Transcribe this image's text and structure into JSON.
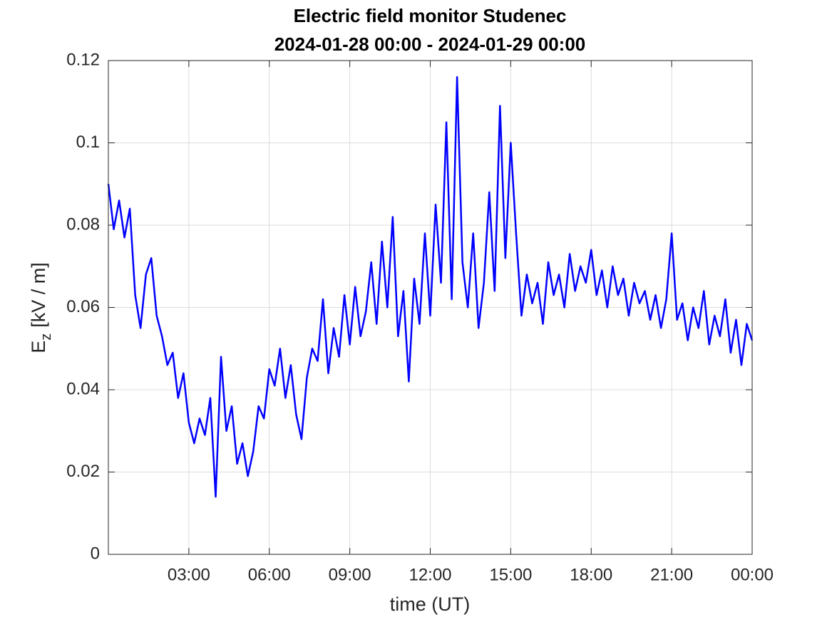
{
  "chart_data": {
    "type": "line",
    "title": "Electric field monitor Studenec",
    "subtitle": "2024-01-28 00:00 - 2024-01-29 00:00",
    "xlabel": "time (UT)",
    "ylabel": {
      "main": "E",
      "sub": "z",
      "rest": "[kV / m]"
    },
    "xlim": [
      0,
      24
    ],
    "xticks": [
      {
        "value": 3,
        "label": "03:00"
      },
      {
        "value": 6,
        "label": "06:00"
      },
      {
        "value": 9,
        "label": "09:00"
      },
      {
        "value": 12,
        "label": "12:00"
      },
      {
        "value": 15,
        "label": "15:00"
      },
      {
        "value": 18,
        "label": "18:00"
      },
      {
        "value": 21,
        "label": "21:00"
      },
      {
        "value": 24,
        "label": "00:00"
      }
    ],
    "ylim": [
      0,
      0.12
    ],
    "yticks": [
      0,
      0.02,
      0.04,
      0.06,
      0.08,
      0.1,
      0.12
    ],
    "grid": true,
    "x": [
      0,
      0.2,
      0.4,
      0.6,
      0.8,
      1,
      1.2,
      1.4,
      1.6,
      1.8,
      2,
      2.2,
      2.4,
      2.6,
      2.8,
      3,
      3.2,
      3.4,
      3.6,
      3.8,
      4,
      4.2,
      4.4,
      4.6,
      4.8,
      5,
      5.2,
      5.4,
      5.6,
      5.8,
      6,
      6.2,
      6.4,
      6.6,
      6.8,
      7,
      7.2,
      7.4,
      7.6,
      7.8,
      8,
      8.2,
      8.4,
      8.6,
      8.8,
      9,
      9.2,
      9.4,
      9.6,
      9.8,
      10,
      10.2,
      10.4,
      10.6,
      10.8,
      11,
      11.2,
      11.4,
      11.6,
      11.8,
      12,
      12.2,
      12.4,
      12.6,
      12.8,
      13,
      13.2,
      13.4,
      13.6,
      13.8,
      14,
      14.2,
      14.4,
      14.6,
      14.8,
      15,
      15.2,
      15.4,
      15.6,
      15.8,
      16,
      16.2,
      16.4,
      16.6,
      16.8,
      17,
      17.2,
      17.4,
      17.6,
      17.8,
      18,
      18.2,
      18.4,
      18.6,
      18.8,
      19,
      19.2,
      19.4,
      19.6,
      19.8,
      20,
      20.2,
      20.4,
      20.6,
      20.8,
      21,
      21.2,
      21.4,
      21.6,
      21.8,
      22,
      22.2,
      22.4,
      22.6,
      22.8,
      23,
      23.2,
      23.4,
      23.6,
      23.8,
      24
    ],
    "series": [
      {
        "color": "#0000ff",
        "values": [
          0.09,
          0.079,
          0.086,
          0.077,
          0.084,
          0.063,
          0.055,
          0.068,
          0.072,
          0.058,
          0.053,
          0.046,
          0.049,
          0.038,
          0.044,
          0.032,
          0.027,
          0.033,
          0.029,
          0.038,
          0.014,
          0.048,
          0.03,
          0.036,
          0.022,
          0.027,
          0.019,
          0.025,
          0.036,
          0.033,
          0.045,
          0.041,
          0.05,
          0.038,
          0.046,
          0.034,
          0.028,
          0.043,
          0.05,
          0.047,
          0.062,
          0.044,
          0.055,
          0.048,
          0.063,
          0.051,
          0.065,
          0.053,
          0.059,
          0.071,
          0.056,
          0.076,
          0.06,
          0.082,
          0.053,
          0.064,
          0.042,
          0.067,
          0.056,
          0.078,
          0.058,
          0.085,
          0.066,
          0.105,
          0.062,
          0.116,
          0.071,
          0.06,
          0.078,
          0.055,
          0.066,
          0.088,
          0.064,
          0.109,
          0.072,
          0.1,
          0.078,
          0.058,
          0.068,
          0.061,
          0.066,
          0.056,
          0.071,
          0.063,
          0.068,
          0.06,
          0.073,
          0.064,
          0.07,
          0.066,
          0.074,
          0.063,
          0.069,
          0.06,
          0.07,
          0.063,
          0.067,
          0.058,
          0.066,
          0.061,
          0.064,
          0.057,
          0.063,
          0.055,
          0.062,
          0.078,
          0.057,
          0.061,
          0.052,
          0.06,
          0.055,
          0.064,
          0.051,
          0.058,
          0.053,
          0.062,
          0.049,
          0.057,
          0.046,
          0.056,
          0.052
        ]
      }
    ]
  }
}
